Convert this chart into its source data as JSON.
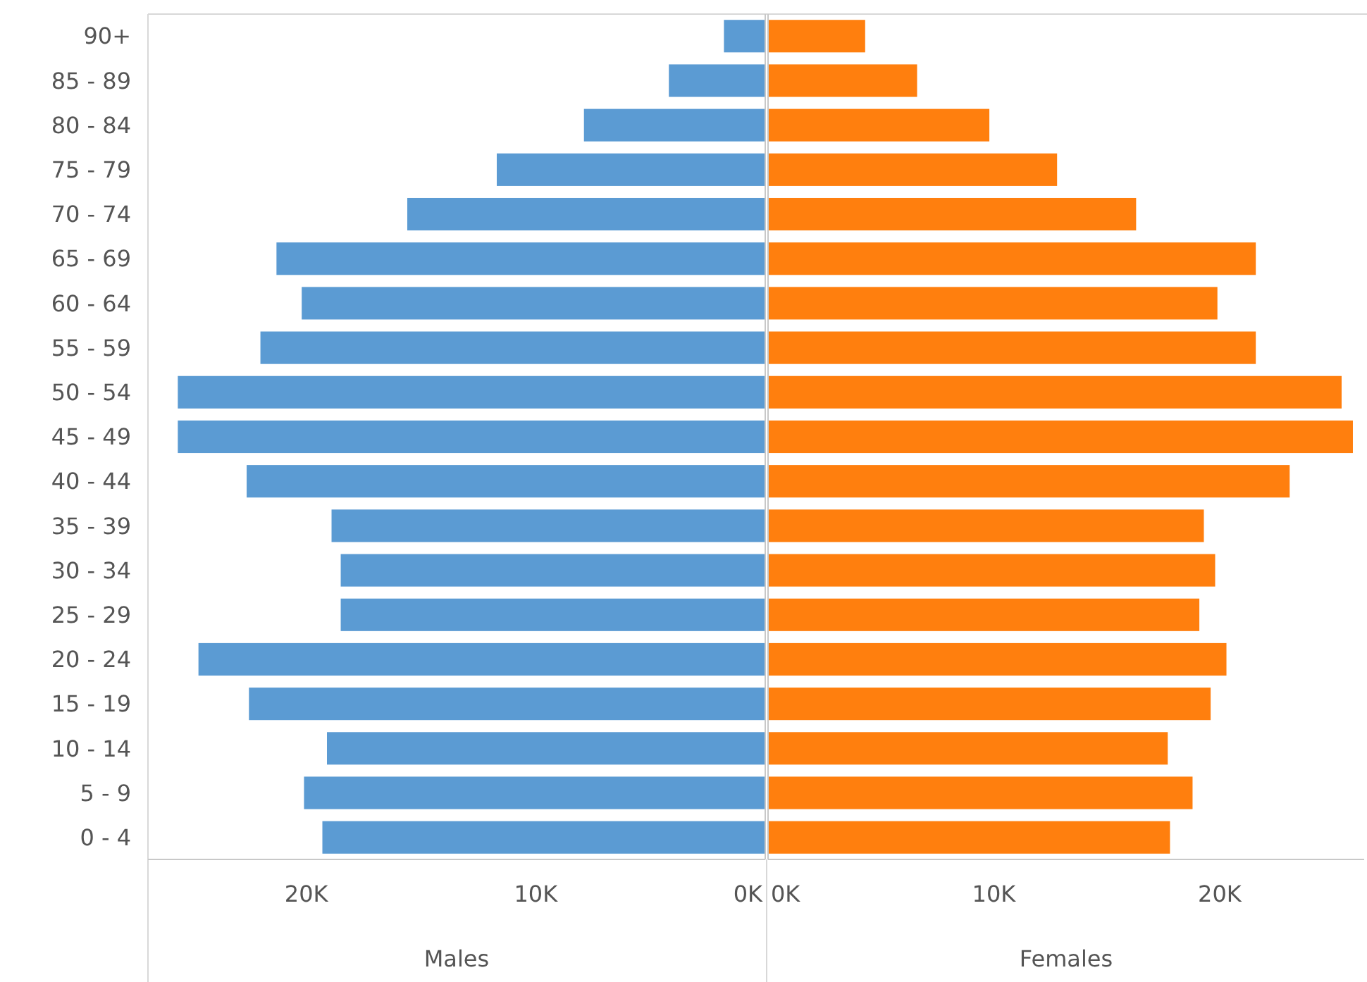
{
  "chart_data": [
    {
      "type": "bar",
      "orientation": "horizontal",
      "xlabel": "Males",
      "categories": [
        "90+",
        "85 - 89",
        "80 - 84",
        "75 - 79",
        "70 - 74",
        "65 - 69",
        "60 - 64",
        "55 - 59",
        "50 - 54",
        "45 - 49",
        "40 - 44",
        "35 - 39",
        "30 - 34",
        "25 - 29",
        "20 - 24",
        "15 - 19",
        "10 - 14",
        "5 - 9",
        "0 - 4"
      ],
      "series": [
        {
          "color": "#5b9bd3",
          "values": [
            1.8,
            4.2,
            7.9,
            11.7,
            15.6,
            21.3,
            20.2,
            22.0,
            25.6,
            25.6,
            22.6,
            18.9,
            18.5,
            18.5,
            24.7,
            22.5,
            19.1,
            20.1,
            19.3
          ]
        }
      ],
      "xlim": [
        26.9,
        0
      ],
      "xticks": [
        {
          "value": 20,
          "label": "20K"
        },
        {
          "value": 10,
          "label": "10K"
        },
        {
          "value": 0,
          "label": "0K"
        }
      ],
      "grid": false
    },
    {
      "type": "bar",
      "orientation": "horizontal",
      "xlabel": "Females",
      "tick_labels": "x",
      "categories": [
        null,
        null,
        null,
        null,
        null,
        null,
        null,
        null,
        null,
        null,
        null,
        null,
        null,
        null,
        null,
        null,
        null,
        null,
        null
      ],
      "series": [
        {
          "color": "#ff7f0e",
          "values": [
            4.3,
            6.6,
            9.8,
            12.8,
            16.3,
            21.6,
            19.9,
            21.6,
            25.4,
            25.9,
            23.1,
            19.3,
            19.8,
            19.1,
            20.3,
            19.6,
            17.7,
            18.8,
            17.8
          ]
        }
      ],
      "xlim": [
        0,
        26.4
      ],
      "xticks": [
        {
          "value": 0,
          "label": "0K"
        },
        {
          "value": 10,
          "label": "10K"
        },
        {
          "value": 20,
          "label": "20K"
        }
      ],
      "grid": false
    }
  ]
}
